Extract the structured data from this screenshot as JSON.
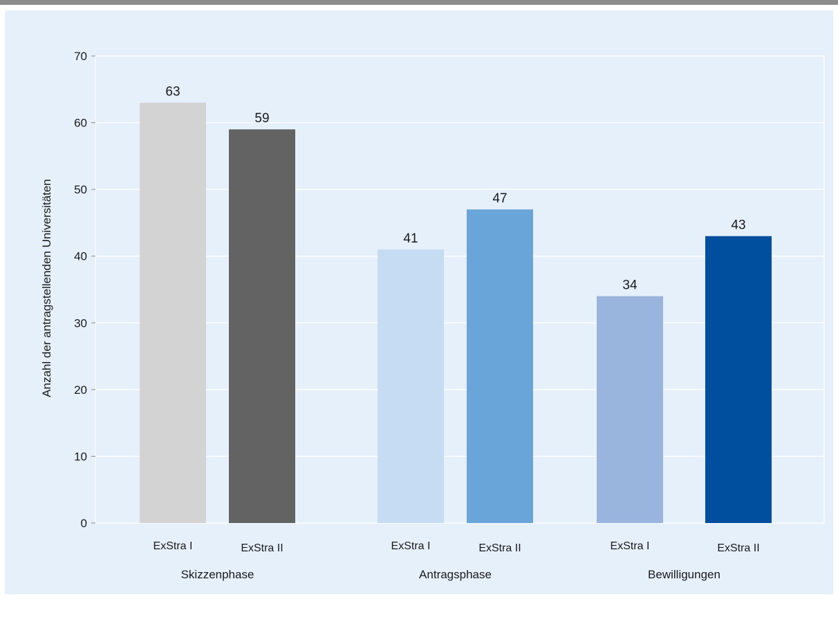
{
  "chart_data": {
    "type": "bar",
    "title": "",
    "ylabel": "Anzahl der antragstellenden Universitäten",
    "ylim": [
      0,
      70
    ],
    "yticks": [
      0,
      10,
      20,
      30,
      40,
      50,
      60,
      70
    ],
    "grid": true,
    "groups": [
      {
        "label": "Skizzenphase",
        "bars": [
          {
            "label": "ExStra I",
            "value": 63,
            "color": "#d3d3d3"
          },
          {
            "label": "ExStra II",
            "value": 59,
            "color": "#636363"
          }
        ]
      },
      {
        "label": "Antragsphase",
        "bars": [
          {
            "label": "ExStra I",
            "value": 41,
            "color": "#c5dcf2"
          },
          {
            "label": "ExStra II",
            "value": 47,
            "color": "#6aa5d9"
          }
        ]
      },
      {
        "label": "Bewilligungen",
        "bars": [
          {
            "label": "ExStra I",
            "value": 34,
            "color": "#99b5de"
          },
          {
            "label": "ExStra II",
            "value": 43,
            "color": "#004f9f"
          }
        ]
      }
    ]
  }
}
